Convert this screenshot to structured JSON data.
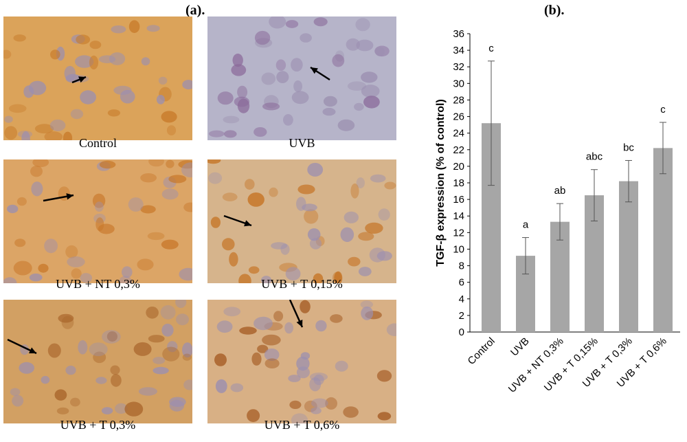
{
  "panel_a": {
    "label": "(a).",
    "images": [
      {
        "caption": "Control",
        "tone": "#dba35a",
        "stain": "#c77a2a",
        "arrow": true
      },
      {
        "caption": "UVB",
        "tone": "#b6b4c9",
        "stain": "#8a6a9a",
        "arrow": true
      },
      {
        "caption": "UVB + NT 0,3%",
        "tone": "#dca566",
        "stain": "#c8782a",
        "arrow": true
      },
      {
        "caption": "UVB + T 0,15%",
        "tone": "#d6b48c",
        "stain": "#c4701f",
        "arrow": true
      },
      {
        "caption": "UVB + T 0,3%",
        "tone": "#d2a063",
        "stain": "#a8642a",
        "arrow": true
      },
      {
        "caption": "UVB + T 0,6%",
        "tone": "#d8b085",
        "stain": "#a45a22",
        "arrow": true
      }
    ]
  },
  "panel_b": {
    "label": "(b)."
  },
  "chart_data": {
    "type": "bar",
    "title": "",
    "xlabel": "",
    "ylabel": "TGF-β  expression (% of control)",
    "ylim": [
      0,
      36
    ],
    "ytick_step": 2,
    "categories": [
      "Control",
      "UVB",
      "UVB + NT 0,3%",
      "UVB + T 0,15%",
      "UVB + T 0,3%",
      "UVB + T 0,6%"
    ],
    "values": [
      25.2,
      9.2,
      13.3,
      16.5,
      18.2,
      22.2
    ],
    "errors": [
      7.5,
      2.2,
      2.2,
      3.1,
      2.5,
      3.1
    ],
    "significance_letters": [
      "c",
      "a",
      "ab",
      "abc",
      "bc",
      "c"
    ],
    "bar_color": "#a6a6a6",
    "grid": false
  }
}
